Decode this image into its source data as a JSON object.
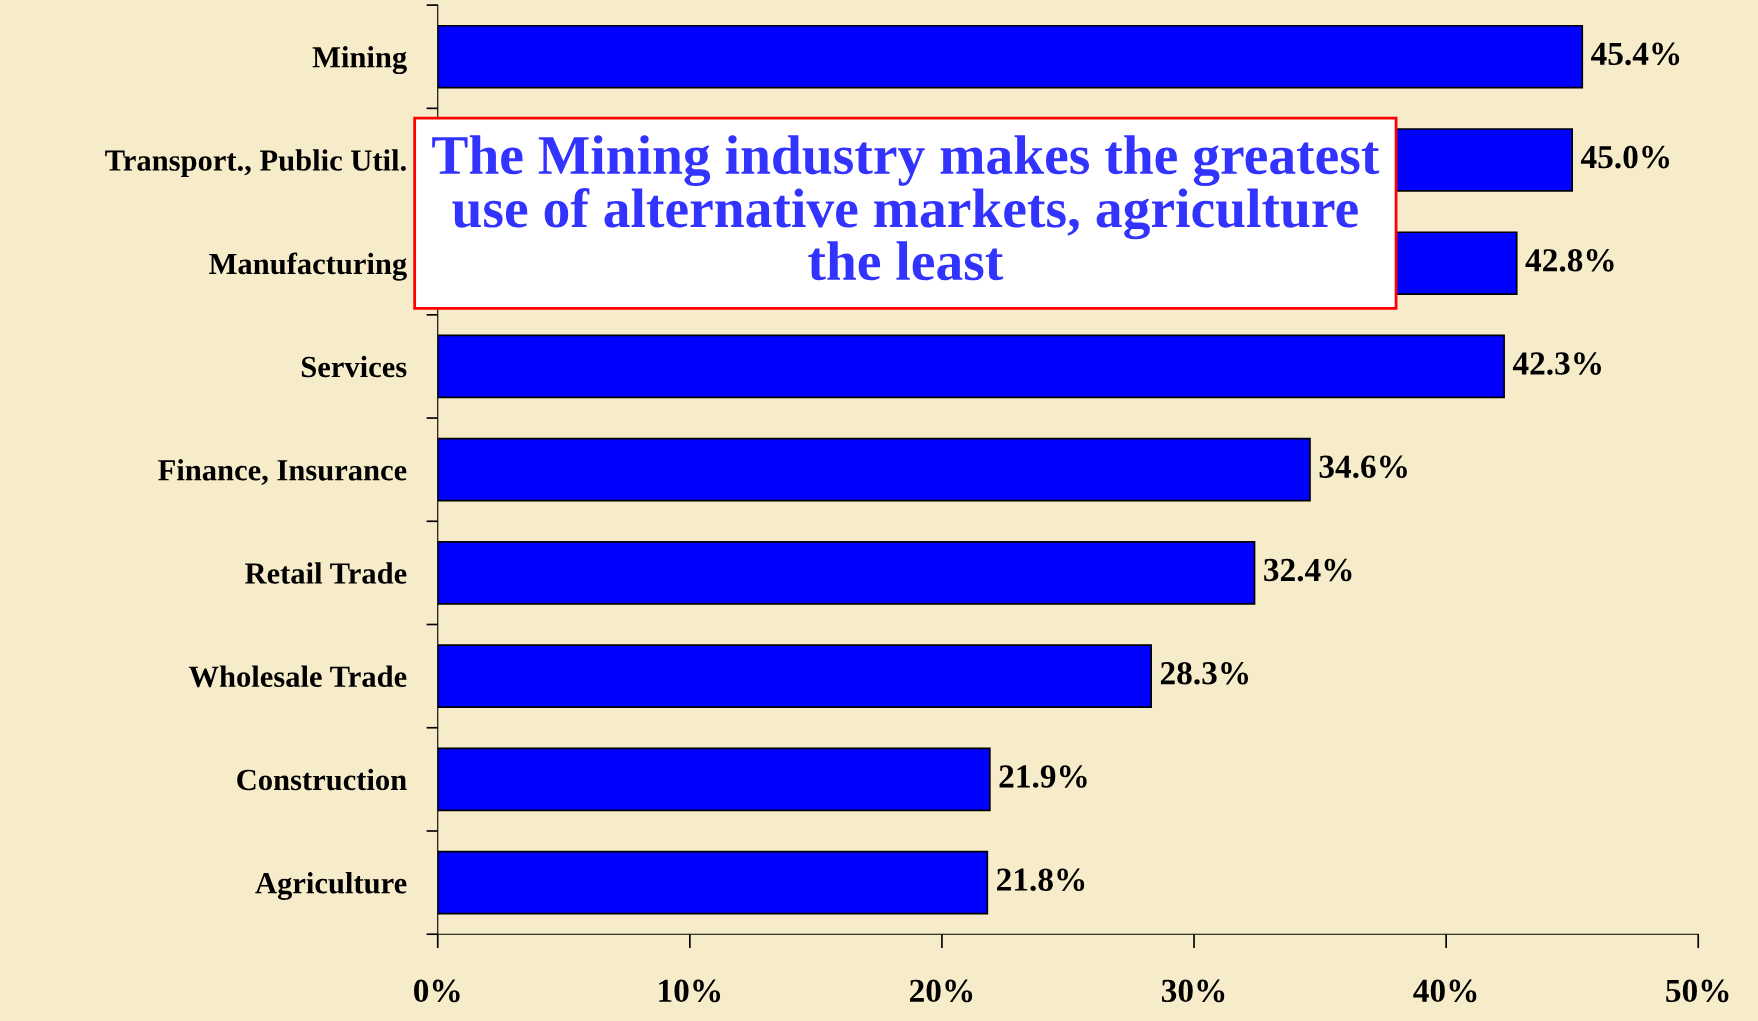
{
  "chart_data": {
    "type": "bar",
    "orientation": "horizontal",
    "title": "The Mining industry makes the greatest use of alternative markets, agriculture the least",
    "categories": [
      "Mining",
      "Transport., Public Util.",
      "Manufacturing",
      "Services",
      "Finance, Insurance",
      "Retail Trade",
      "Wholesale Trade",
      "Construction",
      "Agriculture"
    ],
    "values": [
      45.4,
      45.0,
      42.8,
      42.3,
      34.6,
      32.4,
      28.3,
      21.9,
      21.8
    ],
    "value_labels": [
      "45.4%",
      "45.0%",
      "42.8%",
      "42.3%",
      "34.6%",
      "32.4%",
      "28.3%",
      "21.9%",
      "21.8%"
    ],
    "color": "#0000ff",
    "xlim": [
      0,
      50
    ],
    "xticks": [
      {
        "value": 0,
        "label": "0%"
      },
      {
        "value": 10,
        "label": "10%"
      },
      {
        "value": 20,
        "label": "20%"
      },
      {
        "value": 30,
        "label": "30%"
      },
      {
        "value": 40,
        "label": "40%"
      },
      {
        "value": 50,
        "label": "50%"
      }
    ],
    "grid": false,
    "legend": false
  }
}
